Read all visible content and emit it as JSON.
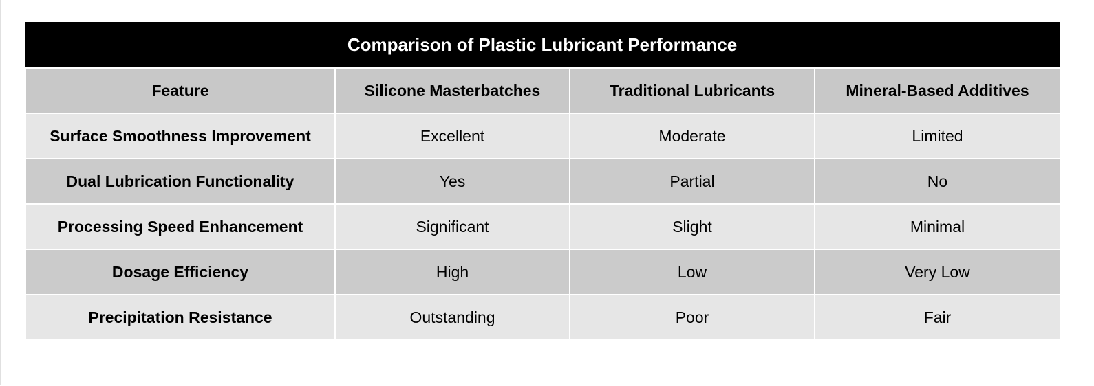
{
  "chart_data": {
    "type": "table",
    "title": "Comparison of Plastic Lubricant Performance",
    "columns": [
      "Feature",
      "Silicone Masterbatches",
      "Traditional Lubricants",
      "Mineral-Based Additives"
    ],
    "rows": [
      [
        "Surface Smoothness Improvement",
        "Excellent",
        "Moderate",
        "Limited"
      ],
      [
        "Dual Lubrication Functionality",
        "Yes",
        "Partial",
        "No"
      ],
      [
        "Processing Speed Enhancement",
        "Significant",
        "Slight",
        "Minimal"
      ],
      [
        "Dosage Efficiency",
        "High",
        "Low",
        "Very Low"
      ],
      [
        "Precipitation Resistance",
        "Outstanding",
        "Poor",
        "Fair"
      ]
    ]
  },
  "colors": {
    "title_bg": "#000000",
    "title_text": "#ffffff",
    "header_bg": "#c8c8c8",
    "row_light": "#e6e6e6",
    "row_dark": "#cbcbcb"
  }
}
